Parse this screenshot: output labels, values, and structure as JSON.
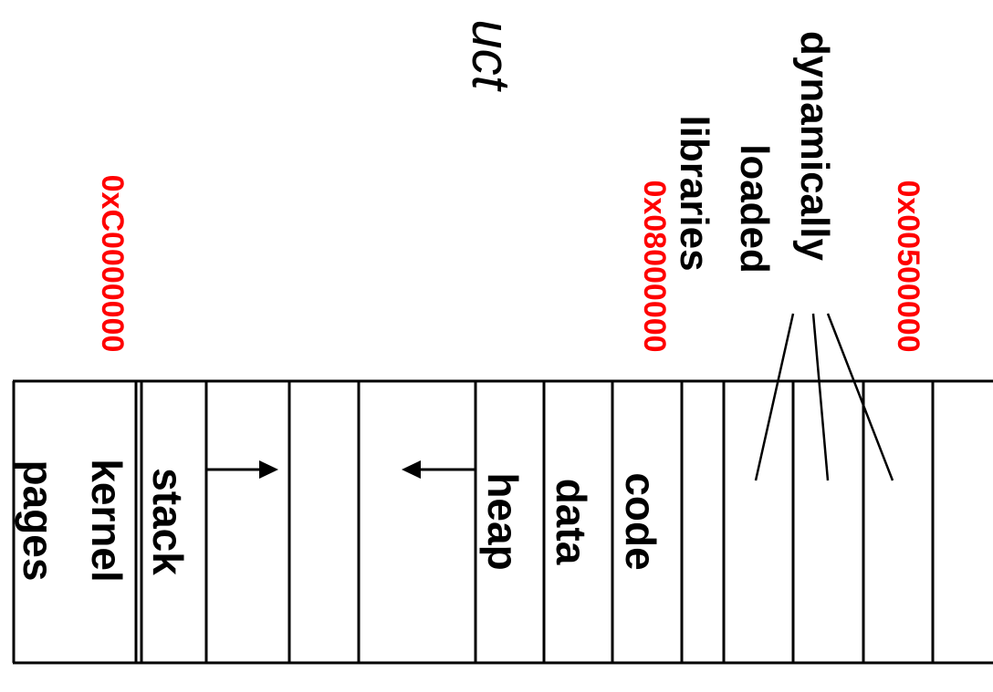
{
  "title_fragment": "uct",
  "segments": {
    "kernel": [
      "kernel",
      "pages"
    ],
    "stack": "stack",
    "heap": "heap",
    "data": "data",
    "code": "code"
  },
  "libraries_label": [
    "dynamically",
    "loaded",
    "libraries"
  ],
  "addresses": {
    "kernel_base": "0xC0000000",
    "code_base": "0x08000000",
    "lib_base": "0x00500000"
  },
  "colors": {
    "address": "#ff0000",
    "line": "#000000"
  }
}
